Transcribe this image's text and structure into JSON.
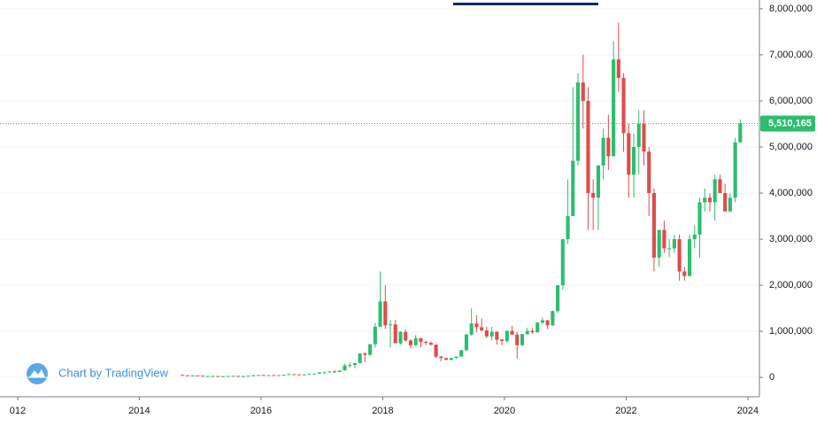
{
  "chart_data": {
    "type": "candlestick",
    "x": [
      2014.708,
      2014.792,
      2014.875,
      2014.958,
      2015.042,
      2015.125,
      2015.208,
      2015.292,
      2015.375,
      2015.458,
      2015.542,
      2015.625,
      2015.708,
      2015.792,
      2015.875,
      2015.958,
      2016.042,
      2016.125,
      2016.208,
      2016.292,
      2016.375,
      2016.458,
      2016.542,
      2016.625,
      2016.708,
      2016.792,
      2016.875,
      2016.958,
      2017.042,
      2017.125,
      2017.208,
      2017.292,
      2017.375,
      2017.458,
      2017.542,
      2017.625,
      2017.708,
      2017.792,
      2017.875,
      2017.958,
      2018.042,
      2018.125,
      2018.208,
      2018.292,
      2018.375,
      2018.458,
      2018.542,
      2018.625,
      2018.708,
      2018.792,
      2018.875,
      2018.958,
      2019.042,
      2019.125,
      2019.208,
      2019.292,
      2019.375,
      2019.458,
      2019.542,
      2019.625,
      2019.708,
      2019.792,
      2019.875,
      2019.958,
      2020.042,
      2020.125,
      2020.208,
      2020.292,
      2020.375,
      2020.458,
      2020.542,
      2020.625,
      2020.708,
      2020.792,
      2020.875,
      2020.958,
      2021.042,
      2021.125,
      2021.208,
      2021.292,
      2021.375,
      2021.458,
      2021.542,
      2021.625,
      2021.708,
      2021.792,
      2021.875,
      2021.958,
      2022.042,
      2022.125,
      2022.208,
      2022.292,
      2022.375,
      2022.458,
      2022.542,
      2022.625,
      2022.708,
      2022.792,
      2022.875,
      2022.958,
      2023.042,
      2023.125,
      2023.208,
      2023.292,
      2023.375,
      2023.458,
      2023.542,
      2023.625,
      2023.708,
      2023.792,
      2023.875
    ],
    "open": [
      55000,
      45000,
      40000,
      43000,
      38000,
      27000,
      30000,
      30000,
      28000,
      28000,
      32000,
      34000,
      28000,
      29000,
      37000,
      45000,
      52000,
      45000,
      50000,
      47000,
      50000,
      57000,
      70000,
      65000,
      60000,
      64000,
      74000,
      82000,
      110000,
      110000,
      130000,
      120000,
      150000,
      260000,
      270000,
      310000,
      520000,
      490000,
      720000,
      1100000,
      1650000,
      1130000,
      1150000,
      740000,
      990000,
      800000,
      700000,
      850000,
      770000,
      750000,
      710000,
      450000,
      420000,
      380000,
      420000,
      450000,
      590000,
      930000,
      1170000,
      1090000,
      1020000,
      890000,
      990000,
      820000,
      790000,
      1010000,
      930000,
      700000,
      940000,
      1010000,
      980000,
      1190000,
      1240000,
      1130000,
      1440000,
      2000000,
      3000000,
      3500000,
      4700000,
      6400000,
      6000000,
      4000000,
      3900000,
      4600000,
      5200000,
      4800000,
      6900000,
      6500000,
      5300000,
      4400000,
      5000000,
      5500000,
      4900000,
      4000000,
      2600000,
      3200000,
      2800000,
      2800000,
      3000000,
      2300000,
      2200000,
      3000000,
      3100000,
      3800000,
      3900000,
      3800000,
      4300000,
      4000000,
      3600000,
      3900000,
      5100000
    ],
    "high": [
      56000,
      48000,
      45000,
      45000,
      40000,
      33000,
      36000,
      31000,
      30000,
      33000,
      37000,
      35000,
      30000,
      40000,
      60000,
      55000,
      55000,
      52000,
      51000,
      53000,
      60000,
      85000,
      72000,
      66000,
      65000,
      75000,
      83000,
      110000,
      130000,
      135000,
      150000,
      150000,
      300000,
      330000,
      320000,
      520000,
      550000,
      720000,
      1180000,
      2300000,
      2000000,
      1250000,
      1250000,
      1000000,
      1050000,
      830000,
      920000,
      860000,
      800000,
      780000,
      720000,
      470000,
      430000,
      430000,
      460000,
      600000,
      950000,
      1500000,
      1350000,
      1280000,
      1100000,
      1100000,
      1000000,
      830000,
      1020000,
      1120000,
      990000,
      950000,
      1080000,
      1070000,
      1200000,
      1300000,
      1250000,
      1450000,
      2000000,
      3000000,
      4300000,
      6300000,
      6600000,
      7000000,
      6300000,
      4300000,
      4600000,
      5400000,
      5700000,
      7300000,
      7700000,
      6600000,
      5500000,
      5300000,
      5800000,
      5800000,
      5000000,
      4100000,
      3200000,
      3400000,
      3000000,
      3100000,
      3100000,
      2400000,
      3100000,
      3300000,
      3900000,
      4100000,
      4000000,
      4400000,
      4400000,
      4200000,
      4000000,
      5200000,
      5600000
    ],
    "low": [
      40000,
      38000,
      38000,
      36000,
      20000,
      25000,
      28000,
      27000,
      27000,
      27000,
      31000,
      25000,
      27000,
      28000,
      36000,
      42000,
      42000,
      44000,
      45000,
      46000,
      48000,
      55000,
      60000,
      55000,
      59000,
      63000,
      72000,
      80000,
      85000,
      105000,
      100000,
      115000,
      150000,
      210000,
      200000,
      300000,
      330000,
      470000,
      650000,
      1100000,
      1050000,
      650000,
      750000,
      710000,
      780000,
      630000,
      680000,
      650000,
      700000,
      700000,
      420000,
      350000,
      380000,
      370000,
      410000,
      450000,
      580000,
      900000,
      980000,
      1000000,
      850000,
      800000,
      710000,
      700000,
      750000,
      920000,
      410000,
      680000,
      920000,
      950000,
      970000,
      1150000,
      1050000,
      1120000,
      1400000,
      1900000,
      2900000,
      3500000,
      4600000,
      5400000,
      3200000,
      3200000,
      3200000,
      4300000,
      4500000,
      4800000,
      6200000,
      4900000,
      3900000,
      3900000,
      4400000,
      4600000,
      3500000,
      2300000,
      2400000,
      2700000,
      2600000,
      2700000,
      2100000,
      2100000,
      2200000,
      2800000,
      2600000,
      3600000,
      3600000,
      3400000,
      4000000,
      3600000,
      3600000,
      3800000,
      5100000
    ],
    "close": [
      45000,
      40000,
      43000,
      38000,
      27000,
      30000,
      30000,
      28000,
      28000,
      32000,
      34000,
      28000,
      29000,
      37000,
      45000,
      52000,
      45000,
      50000,
      47000,
      50000,
      57000,
      70000,
      65000,
      60000,
      64000,
      74000,
      82000,
      110000,
      110000,
      130000,
      120000,
      150000,
      260000,
      270000,
      310000,
      520000,
      490000,
      720000,
      1100000,
      1650000,
      1130000,
      1150000,
      740000,
      990000,
      800000,
      700000,
      850000,
      770000,
      750000,
      710000,
      450000,
      420000,
      380000,
      420000,
      450000,
      590000,
      930000,
      1170000,
      1090000,
      1020000,
      890000,
      990000,
      820000,
      790000,
      1010000,
      930000,
      700000,
      940000,
      1010000,
      980000,
      1190000,
      1240000,
      1130000,
      1440000,
      2000000,
      3000000,
      3500000,
      4700000,
      6400000,
      6000000,
      4000000,
      3900000,
      4600000,
      5200000,
      4800000,
      6900000,
      6500000,
      5300000,
      4400000,
      5000000,
      5500000,
      4900000,
      4000000,
      2600000,
      3200000,
      2800000,
      2800000,
      3000000,
      2300000,
      2200000,
      3000000,
      3100000,
      3800000,
      3900000,
      3800000,
      4300000,
      4000000,
      3600000,
      3900000,
      5100000,
      5510165
    ],
    "up_color": "#2dbd6e",
    "down_color": "#e04b4b",
    "xlim": [
      2011.71,
      2024.19
    ],
    "xticks": [
      {
        "value": 2012,
        "label": "012"
      },
      2014,
      2016,
      2018,
      2020,
      2022,
      2024
    ],
    "ylim": [
      -420000,
      8190000
    ],
    "yticks": [
      0,
      {
        "value": 1000000,
        "label": "1,000,000"
      },
      {
        "value": 2000000,
        "label": "2,000,000"
      },
      {
        "value": 3000000,
        "label": "3,000,000"
      },
      {
        "value": 4000000,
        "label": "4,000,000"
      },
      {
        "value": 5000000,
        "label": "5,000,000"
      },
      {
        "value": 6000000,
        "label": "6,000,000"
      },
      {
        "value": 7000000,
        "label": "7,000,000"
      },
      {
        "value": 8000000,
        "label": "8,000,000"
      }
    ],
    "grid": true,
    "price_line": {
      "value": 5510165,
      "label": "5,510,165"
    },
    "watermark": "Chart by TradingView"
  }
}
